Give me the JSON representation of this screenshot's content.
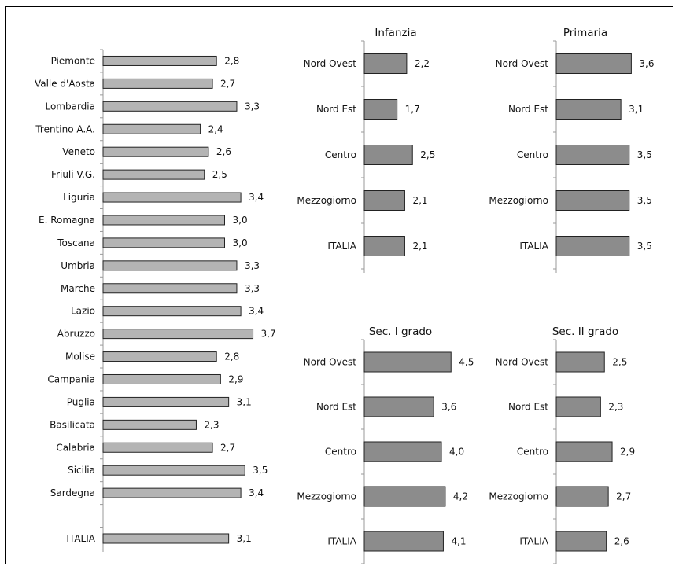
{
  "chart_data": [
    {
      "type": "bar",
      "orientation": "horizontal",
      "title": "",
      "categories": [
        "Piemonte",
        "Valle d'Aosta",
        "Lombardia",
        "Trentino A.A.",
        "Veneto",
        "Friuli V.G.",
        "Liguria",
        "E. Romagna",
        "Toscana",
        "Umbria",
        "Marche",
        "Lazio",
        "Abruzzo",
        "Molise",
        "Campania",
        "Puglia",
        "Basilicata",
        "Calabria",
        "Sicilia",
        "Sardegna",
        "",
        "ITALIA"
      ],
      "values": [
        2.8,
        2.7,
        3.3,
        2.4,
        2.6,
        2.5,
        3.4,
        3.0,
        3.0,
        3.3,
        3.3,
        3.4,
        3.7,
        2.8,
        2.9,
        3.1,
        2.3,
        2.7,
        3.5,
        3.4,
        null,
        3.1
      ],
      "labels": [
        "2,8",
        "2,7",
        "3,3",
        "2,4",
        "2,6",
        "2,5",
        "3,4",
        "3,0",
        "3,0",
        "3,3",
        "3,3",
        "3,4",
        "3,7",
        "2,8",
        "2,9",
        "3,1",
        "2,3",
        "2,7",
        "3,5",
        "3,4",
        "",
        "3,1"
      ],
      "bar_color": "#b4b4b4"
    },
    {
      "type": "bar",
      "orientation": "horizontal",
      "title": "Infanzia",
      "categories": [
        "Nord Ovest",
        "Nord Est",
        "Centro",
        "Mezzogiorno",
        "ITALIA"
      ],
      "values": [
        2.2,
        1.7,
        2.5,
        2.1,
        2.1
      ],
      "labels": [
        "2,2",
        "1,7",
        "2,5",
        "2,1",
        "2,1"
      ],
      "bar_color": "#8c8c8c"
    },
    {
      "type": "bar",
      "orientation": "horizontal",
      "title": "Primaria",
      "categories": [
        "Nord Ovest",
        "Nord Est",
        "Centro",
        "Mezzogiorno",
        "ITALIA"
      ],
      "values": [
        3.6,
        3.1,
        3.5,
        3.5,
        3.5
      ],
      "labels": [
        "3,6",
        "3,1",
        "3,5",
        "3,5",
        "3,5"
      ],
      "bar_color": "#8c8c8c"
    },
    {
      "type": "bar",
      "orientation": "horizontal",
      "title": "Sec. I grado",
      "categories": [
        "Nord Ovest",
        "Nord Est",
        "Centro",
        "Mezzogiorno",
        "ITALIA"
      ],
      "values": [
        4.5,
        3.6,
        4.0,
        4.2,
        4.1
      ],
      "labels": [
        "4,5",
        "3,6",
        "4,0",
        "4,2",
        "4,1"
      ],
      "bar_color": "#8c8c8c"
    },
    {
      "type": "bar",
      "orientation": "horizontal",
      "title": "Sec. II grado",
      "categories": [
        "Nord Ovest",
        "Nord Est",
        "Centro",
        "Mezzogiorno",
        "ITALIA"
      ],
      "values": [
        2.5,
        2.3,
        2.9,
        2.7,
        2.6
      ],
      "labels": [
        "2,5",
        "2,3",
        "2,9",
        "2,7",
        "2,6"
      ],
      "bar_color": "#8c8c8c"
    }
  ]
}
